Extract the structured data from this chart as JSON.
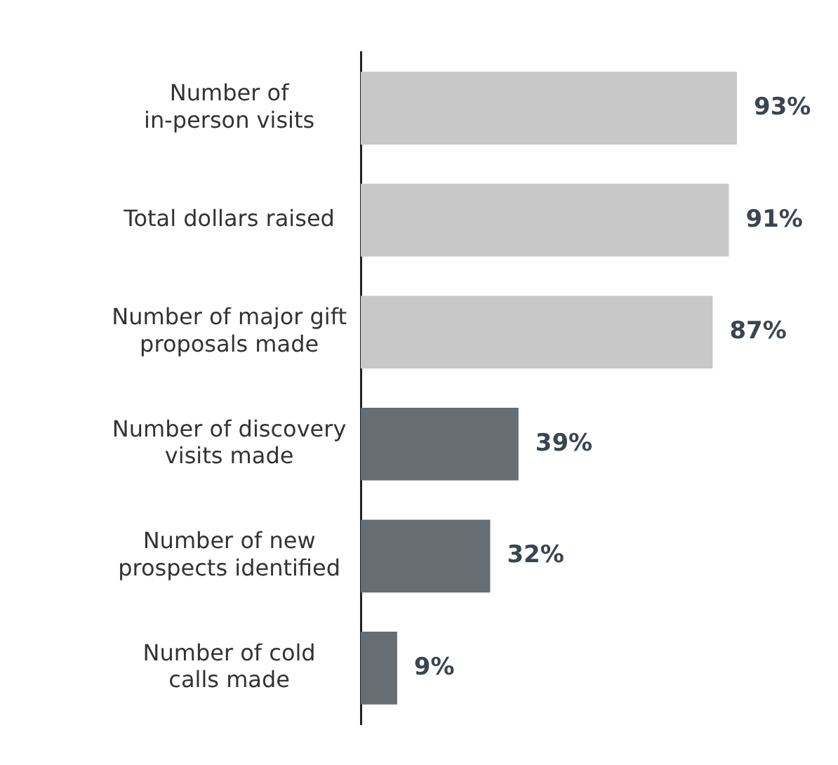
{
  "chart_data": {
    "type": "bar",
    "orientation": "horizontal",
    "categories": [
      "Number of\nin-person visits",
      "Total dollars raised",
      "Number of major gift\nproposals made",
      "Number of discovery\nvisits made",
      "Number of new\nprospects identified",
      "Number of cold\ncalls made"
    ],
    "values": [
      93,
      91,
      87,
      39,
      32,
      9
    ],
    "colors": [
      "#c8c8c8",
      "#c8c8c8",
      "#c8c8c8",
      "#666d73",
      "#666d73",
      "#666d73"
    ],
    "value_labels": [
      "93%",
      "91%",
      "87%",
      "39%",
      "32%",
      "9%"
    ]
  }
}
